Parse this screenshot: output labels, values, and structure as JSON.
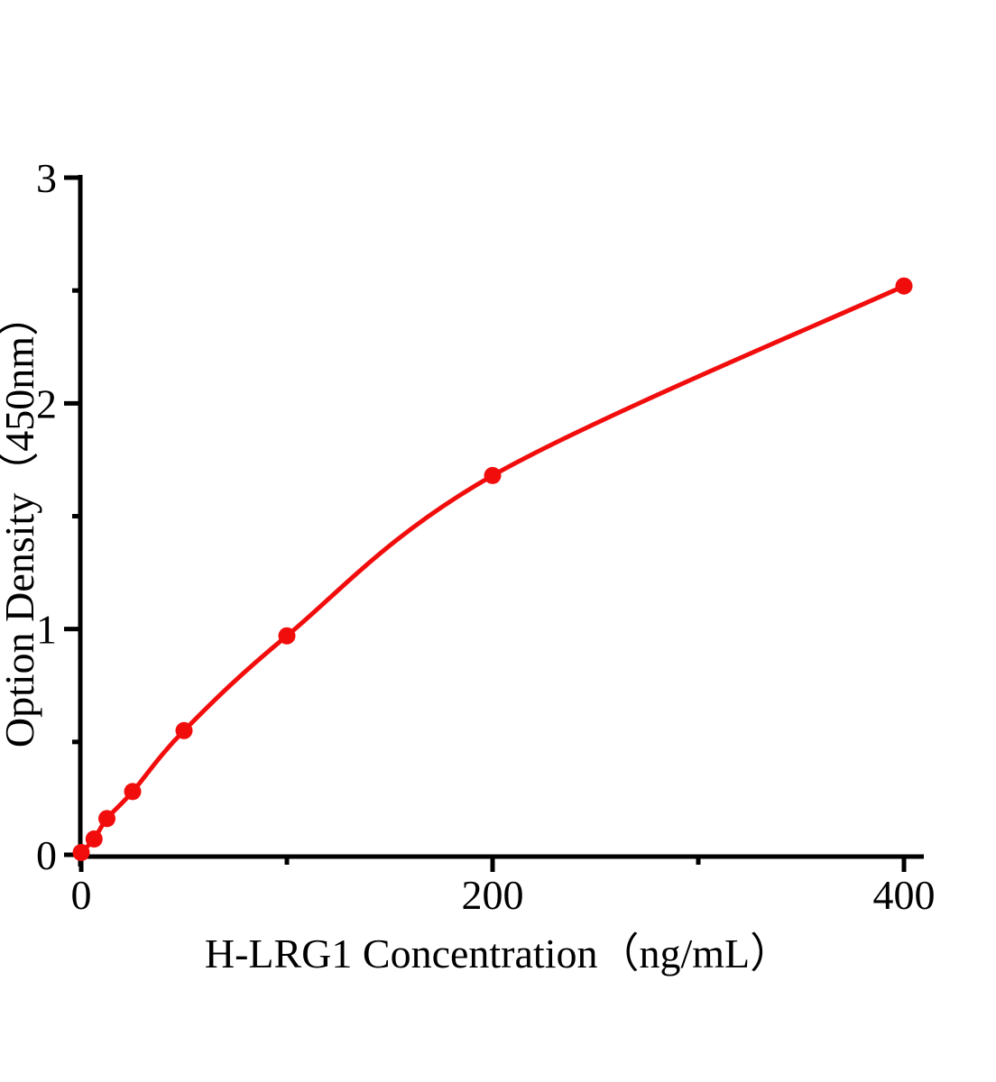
{
  "figure": {
    "background_color": "#ffffff"
  },
  "chart_data": {
    "type": "line",
    "xlabel": "H-LRG1 Concentration（ng/mL）",
    "ylabel": "Option Density（450nm）",
    "x": [
      0,
      6.25,
      12.5,
      25,
      50,
      100,
      200,
      400
    ],
    "y": [
      0.01,
      0.07,
      0.16,
      0.28,
      0.55,
      0.97,
      1.68,
      2.52
    ],
    "xlim": [
      0,
      410
    ],
    "ylim": [
      0,
      3
    ],
    "x_ticks_major": [
      0,
      200,
      400
    ],
    "x_ticks_minor": [
      100,
      300
    ],
    "y_ticks_major": [
      0,
      1,
      2,
      3
    ],
    "y_ticks_minor": [
      0.5,
      1.5,
      2.5
    ],
    "grid": false,
    "legend": false,
    "line_color": "#f20d0d",
    "marker_color": "#f20d0d",
    "marker": "circle",
    "axis_color": "#000000",
    "text_color": "#000000"
  }
}
